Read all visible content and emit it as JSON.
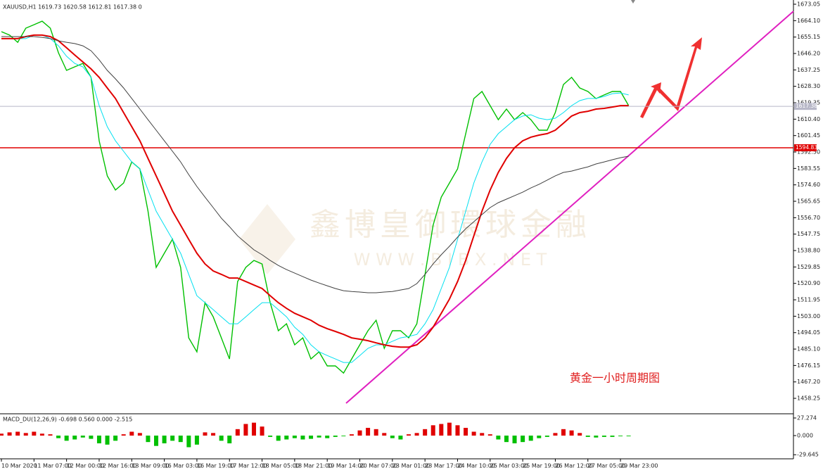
{
  "chart_data": {
    "type": "line",
    "header": "XAUUSD,H1  1619.73 1620.58 1612.81 1617.38  0",
    "annotation": "黄金一小时周期图",
    "watermark": [
      "鑫博皇御環球金融",
      "W W W . B I B X . N E T"
    ],
    "categories": [
      "10 Mar 2020",
      null,
      null,
      null,
      "11 Mar 07:00",
      null,
      null,
      null,
      "12 Mar 00:00",
      null,
      null,
      null,
      "12 Mar 16:00",
      null,
      null,
      null,
      "13 Mar 09:00",
      null,
      null,
      null,
      "16 Mar 03:00",
      null,
      null,
      null,
      "16 Mar 19:00",
      null,
      null,
      null,
      "17 Mar 12:00",
      null,
      null,
      null,
      "18 Mar 05:00",
      null,
      null,
      null,
      "18 Mar 21:00",
      null,
      null,
      null,
      "19 Mar 14:00",
      null,
      null,
      null,
      "20 Mar 07:00",
      null,
      null,
      null,
      "23 Mar 01:00",
      null,
      null,
      null,
      "23 Mar 17:00",
      null,
      null,
      null,
      "24 Mar 10:00",
      null,
      null,
      null,
      "25 Mar 03:00",
      null,
      null,
      null,
      "25 Mar 19:00",
      null,
      null,
      null,
      "26 Mar 12:00",
      null,
      null,
      null,
      "27 Mar 05:00",
      null,
      null,
      null,
      "29 Mar 23:00",
      null
    ],
    "series": [
      {
        "color": "#00c000",
        "values": [
          1658.1,
          1656.2,
          1652.3,
          1660.0,
          1661.9,
          1663.8,
          1660.0,
          1646.6,
          1637.0,
          1638.9,
          1640.8,
          1633.2,
          1598.6,
          1579.5,
          1571.8,
          1575.6,
          1587.1,
          1583.3,
          1560.3,
          1529.6,
          1537.3,
          1545.0,
          1529.6,
          1491.2,
          1483.6,
          1510.4,
          1502.7,
          1491.2,
          1479.7,
          1521.9,
          1529.6,
          1533.4,
          1531.5,
          1510.4,
          1495.1,
          1498.9,
          1487.4,
          1491.2,
          1479.7,
          1483.6,
          1475.9,
          1475.9,
          1472.0,
          1479.7,
          1487.4,
          1495.1,
          1500.8,
          1485.5,
          1495.1,
          1495.1,
          1491.2,
          1498.9,
          1525.7,
          1552.6,
          1567.9,
          1575.6,
          1583.3,
          1602.5,
          1621.6,
          1625.5,
          1617.8,
          1610.1,
          1615.9,
          1610.1,
          1614.0,
          1610.1,
          1604.4,
          1604.4,
          1614.0,
          1629.3,
          1633.2,
          1627.4,
          1625.5,
          1621.6,
          1623.6,
          1625.5,
          1625.5,
          1617.8
        ]
      },
      {
        "color": "#00e0f0",
        "values": [
          1654.3,
          1654.3,
          1654.3,
          1654.3,
          1656.2,
          1656.2,
          1654.3,
          1650.4,
          1644.7,
          1640.8,
          1638.9,
          1633.2,
          1617.8,
          1606.3,
          1598.6,
          1592.9,
          1587.1,
          1583.3,
          1571.8,
          1560.3,
          1552.6,
          1544.9,
          1537.3,
          1525.8,
          1514.2,
          1510.4,
          1506.6,
          1502.7,
          1498.9,
          1498.9,
          1502.7,
          1506.6,
          1510.4,
          1510.4,
          1506.6,
          1502.7,
          1497.0,
          1493.1,
          1487.4,
          1483.6,
          1481.6,
          1479.7,
          1477.8,
          1477.8,
          1481.6,
          1485.5,
          1487.4,
          1487.4,
          1489.3,
          1491.2,
          1492.0,
          1493.1,
          1498.9,
          1506.6,
          1518.1,
          1529.6,
          1544.9,
          1560.3,
          1575.6,
          1587.1,
          1596.7,
          1602.5,
          1606.3,
          1610.1,
          1612.1,
          1612.8,
          1610.9,
          1610.1,
          1610.9,
          1614.0,
          1617.8,
          1620.5,
          1621.7,
          1621.7,
          1622.8,
          1624.3,
          1624.7,
          1623.6
        ]
      },
      {
        "color": "#e00000",
        "values": [
          1654.3,
          1654.3,
          1654.3,
          1655.4,
          1656.2,
          1656.2,
          1655.4,
          1653.1,
          1649.3,
          1645.4,
          1641.6,
          1637.8,
          1633.2,
          1627.4,
          1621.7,
          1614.0,
          1606.3,
          1598.6,
          1589.0,
          1579.5,
          1569.9,
          1560.3,
          1552.6,
          1544.9,
          1537.3,
          1531.5,
          1527.7,
          1525.8,
          1523.8,
          1523.8,
          1521.9,
          1520.0,
          1518.1,
          1514.2,
          1510.4,
          1507.3,
          1504.6,
          1502.7,
          1500.8,
          1498.1,
          1496.2,
          1494.7,
          1493.1,
          1491.2,
          1490.5,
          1489.7,
          1488.5,
          1487.4,
          1486.6,
          1486.2,
          1486.2,
          1487.4,
          1491.2,
          1497.0,
          1504.6,
          1512.3,
          1521.9,
          1533.4,
          1546.8,
          1560.3,
          1571.8,
          1581.4,
          1589.0,
          1594.8,
          1598.6,
          1600.6,
          1601.7,
          1602.5,
          1604.4,
          1608.2,
          1612.1,
          1614.0,
          1614.7,
          1615.9,
          1616.3,
          1617.0,
          1617.8,
          1617.8
        ]
      },
      {
        "color": "#404040",
        "values": [
          1655.4,
          1655.4,
          1655.4,
          1655.4,
          1655.4,
          1655.0,
          1654.3,
          1653.1,
          1652.3,
          1651.6,
          1650.4,
          1647.7,
          1642.7,
          1637.0,
          1632.4,
          1627.4,
          1621.7,
          1615.9,
          1610.1,
          1604.4,
          1598.6,
          1592.9,
          1587.1,
          1580.2,
          1573.7,
          1567.9,
          1562.2,
          1556.4,
          1551.8,
          1546.8,
          1543.0,
          1539.2,
          1536.5,
          1533.4,
          1530.7,
          1528.4,
          1526.5,
          1524.6,
          1522.7,
          1521.1,
          1519.6,
          1518.1,
          1516.9,
          1516.5,
          1516.2,
          1515.8,
          1515.8,
          1516.2,
          1516.5,
          1517.3,
          1518.1,
          1520.8,
          1525.8,
          1531.5,
          1536.5,
          1541.1,
          1546.1,
          1550.7,
          1554.5,
          1558.4,
          1562.2,
          1564.9,
          1566.8,
          1568.7,
          1570.6,
          1572.9,
          1574.9,
          1577.2,
          1579.5,
          1581.4,
          1582.1,
          1583.3,
          1584.4,
          1586.0,
          1587.1,
          1588.3,
          1589.4,
          1590.2
        ]
      }
    ],
    "ylim": [
      1450.6,
      1675.35
    ],
    "yticks": [
      1673.05,
      {
        "value": 1664.1,
        "label": "1664.10"
      },
      1655.15,
      {
        "value": 1646.2,
        "label": "1646.20"
      },
      1637.25,
      {
        "value": 1628.3,
        "label": "1628.30"
      },
      1619.35,
      {
        "value": 1610.4,
        "label": "1610.40"
      },
      1601.45,
      {
        "value": 1592.5,
        "label": "1592.50"
      },
      1583.55,
      {
        "value": 1574.6,
        "label": "1574.60"
      },
      1565.65,
      {
        "value": 1556.7,
        "label": "1556.70"
      },
      1547.75,
      {
        "value": 1538.8,
        "label": "1538.80"
      },
      1529.85,
      {
        "value": 1520.9,
        "label": "1520.90"
      },
      1511.95,
      {
        "value": 1503.0,
        "label": "1503.00"
      },
      1494.05,
      {
        "value": 1485.1,
        "label": "1485.10"
      },
      1476.15,
      {
        "value": 1467.2,
        "label": "1467.20"
      },
      1458.25
    ],
    "levels": [
      {
        "value": 1617.38,
        "color": "#b8b8c8"
      },
      {
        "value": 1594.83,
        "color": "#e00000"
      }
    ],
    "macd": {
      "header": "MACD_DU(12,26,9) -0.698 0.560 0.000 -2.515",
      "ylim": [
        -33.8,
        32.7
      ],
      "yticks": [
        27.274,
        {
          "value": 0,
          "label": "0.000"
        },
        -29.645
      ],
      "up_color": "#e00000",
      "down_color": "#00c000",
      "values": [
        3,
        5,
        6,
        4,
        6,
        3,
        2,
        -4,
        -8,
        -6,
        -3,
        -5,
        -12,
        -14,
        -8,
        2,
        6,
        4,
        -10,
        -16,
        -12,
        -8,
        -10,
        -18,
        -14,
        5,
        4,
        -8,
        -12,
        10,
        18,
        20,
        14,
        -2,
        -8,
        -6,
        -4,
        -6,
        -5,
        -3,
        -4,
        -2,
        -1,
        2,
        8,
        12,
        10,
        4,
        -4,
        -6,
        2,
        4,
        10,
        16,
        18,
        20,
        16,
        12,
        6,
        4,
        2,
        -6,
        -10,
        -12,
        -10,
        -8,
        -4,
        -2,
        4,
        10,
        8,
        4,
        -2,
        -3,
        -2,
        -2,
        -1,
        -1
      ]
    }
  }
}
